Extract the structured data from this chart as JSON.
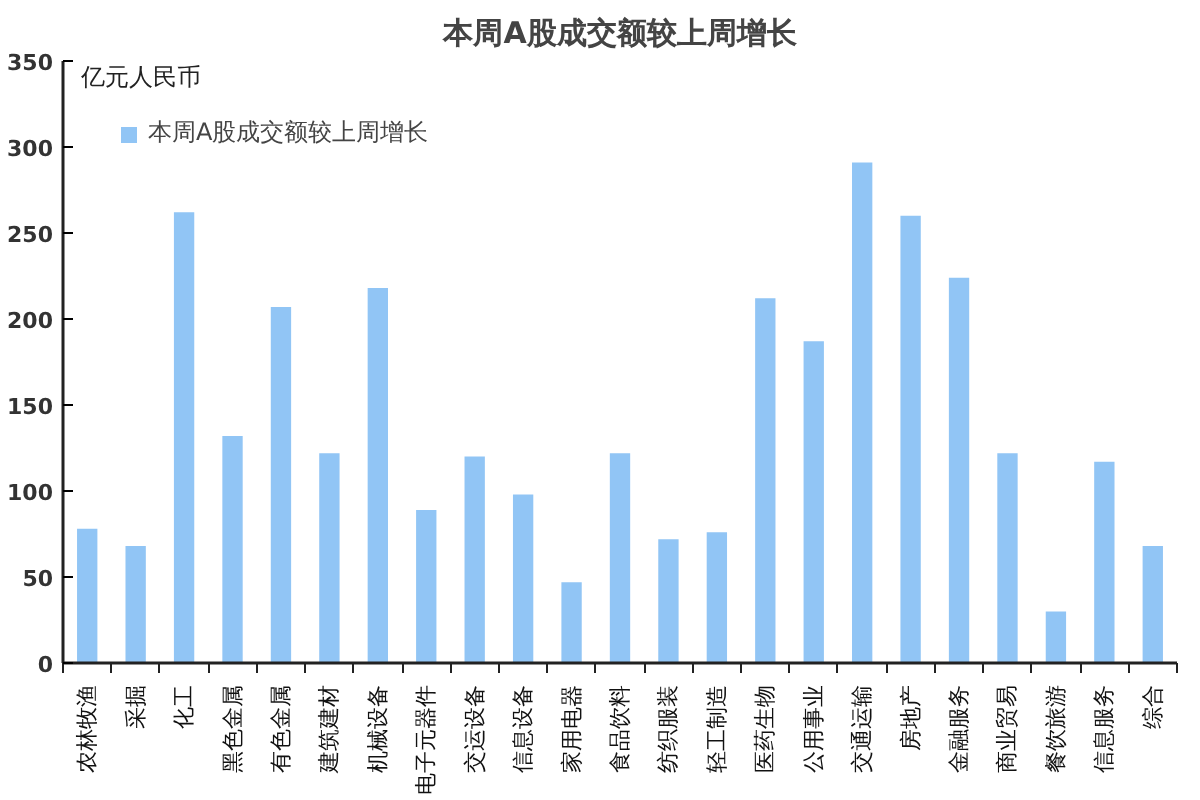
{
  "chart_data": {
    "type": "bar",
    "title": "本周A股成交额较上周增长",
    "ylabel": "亿元人民币",
    "categories": [
      "农林牧渔",
      "采掘",
      "化工",
      "黑色金属",
      "有色金属",
      "建筑建材",
      "机械设备",
      "电子元器件",
      "交运设备",
      "信息设备",
      "家用电器",
      "食品饮料",
      "纺织服装",
      "轻工制造",
      "医药生物",
      "公用事业",
      "交通运输",
      "房地产",
      "金融服务",
      "商业贸易",
      "餐饮旅游",
      "信息服务",
      "综合"
    ],
    "series": [
      {
        "name": "本周A股成交额较上周增长",
        "color": "#91c5f5",
        "values": [
          78,
          68,
          262,
          132,
          207,
          122,
          218,
          89,
          120,
          98,
          47,
          122,
          72,
          76,
          212,
          187,
          291,
          260,
          224,
          122,
          30,
          117,
          68
        ]
      }
    ],
    "ylim": [
      0,
      350
    ],
    "yticks": [
      0,
      50,
      100,
      150,
      200,
      250,
      300,
      350
    ],
    "legend": "top left"
  }
}
